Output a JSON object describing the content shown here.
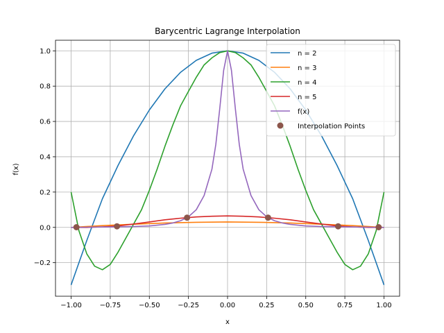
{
  "chart_data": {
    "type": "line",
    "title": "Barycentric Lagrange Interpolation",
    "xlabel": "x",
    "ylabel": "f(x)",
    "xlim": [
      -1.1,
      1.1
    ],
    "ylim": [
      -0.39,
      1.06
    ],
    "xticks": [
      -1.0,
      -0.75,
      -0.5,
      -0.25,
      0.0,
      0.25,
      0.5,
      0.75,
      1.0
    ],
    "xtick_labels": [
      "−1.00",
      "−0.75",
      "−0.50",
      "−0.25",
      "0.00",
      "0.25",
      "0.50",
      "0.75",
      "1.00"
    ],
    "yticks": [
      -0.2,
      0.0,
      0.2,
      0.4,
      0.6,
      0.8,
      1.0
    ],
    "ytick_labels": [
      "−0.2",
      "0.0",
      "0.2",
      "0.4",
      "0.6",
      "0.8",
      "1.0"
    ],
    "grid": true,
    "legend_position": "top-right",
    "series": [
      {
        "name": "n = 2",
        "color": "#1f77b4",
        "x": [
          -1.0,
          -0.9,
          -0.8,
          -0.7,
          -0.6,
          -0.5,
          -0.4,
          -0.3,
          -0.2,
          -0.1,
          0.0,
          0.1,
          0.2,
          0.3,
          0.4,
          0.5,
          0.6,
          0.7,
          0.8,
          0.9,
          1.0
        ],
        "y": [
          -0.326,
          -0.074,
          0.162,
          0.351,
          0.52,
          0.665,
          0.785,
          0.879,
          0.946,
          0.987,
          1.0,
          0.987,
          0.946,
          0.879,
          0.785,
          0.665,
          0.52,
          0.351,
          0.162,
          -0.074,
          -0.326
        ]
      },
      {
        "name": "n = 3",
        "color": "#ff7f0e",
        "x": [
          -1.0,
          -0.8,
          -0.6,
          -0.4,
          -0.2,
          0.0,
          0.2,
          0.4,
          0.6,
          0.8,
          1.0
        ],
        "y": [
          0.0,
          0.01,
          0.018,
          0.025,
          0.029,
          0.031,
          0.029,
          0.025,
          0.018,
          0.01,
          0.0
        ]
      },
      {
        "name": "n = 4",
        "color": "#2ca02c",
        "x": [
          -1.0,
          -0.95,
          -0.9,
          -0.85,
          -0.8,
          -0.75,
          -0.7,
          -0.65,
          -0.6,
          -0.55,
          -0.5,
          -0.45,
          -0.4,
          -0.35,
          -0.3,
          -0.25,
          -0.2,
          -0.15,
          -0.1,
          -0.05,
          0.0,
          0.05,
          0.1,
          0.15,
          0.2,
          0.25,
          0.3,
          0.35,
          0.4,
          0.45,
          0.5,
          0.55,
          0.6,
          0.65,
          0.7,
          0.75,
          0.8,
          0.85,
          0.9,
          0.95,
          1.0
        ],
        "y": [
          0.2,
          -0.02,
          -0.15,
          -0.22,
          -0.24,
          -0.21,
          -0.14,
          -0.06,
          0.02,
          0.1,
          0.21,
          0.33,
          0.46,
          0.58,
          0.69,
          0.77,
          0.85,
          0.92,
          0.96,
          0.99,
          1.0,
          0.99,
          0.96,
          0.92,
          0.85,
          0.77,
          0.69,
          0.58,
          0.46,
          0.33,
          0.21,
          0.1,
          0.02,
          -0.06,
          -0.14,
          -0.21,
          -0.24,
          -0.22,
          -0.15,
          -0.02,
          0.2
        ]
      },
      {
        "name": "n = 5",
        "color": "#d62728",
        "x": [
          -1.0,
          -0.9,
          -0.8,
          -0.7,
          -0.6,
          -0.5,
          -0.4,
          -0.3,
          -0.2,
          -0.1,
          0.0,
          0.1,
          0.2,
          0.3,
          0.4,
          0.5,
          0.6,
          0.7,
          0.8,
          0.9,
          1.0
        ],
        "y": [
          0.0,
          0.0,
          0.003,
          0.008,
          0.019,
          0.031,
          0.043,
          0.052,
          0.059,
          0.063,
          0.065,
          0.063,
          0.059,
          0.052,
          0.043,
          0.031,
          0.019,
          0.008,
          0.003,
          0.0,
          0.0
        ]
      },
      {
        "name": "f(x)",
        "color": "#9467bd",
        "x": [
          -1.0,
          -0.9,
          -0.8,
          -0.7,
          -0.6,
          -0.5,
          -0.4,
          -0.35,
          -0.3,
          -0.25,
          -0.2,
          -0.15,
          -0.1,
          -0.075,
          -0.05,
          -0.025,
          0.0,
          0.025,
          0.05,
          0.075,
          0.1,
          0.15,
          0.2,
          0.25,
          0.3,
          0.35,
          0.4,
          0.5,
          0.6,
          0.7,
          0.8,
          0.9,
          1.0
        ],
        "y": [
          0.0,
          0.001,
          0.002,
          0.003,
          0.005,
          0.008,
          0.017,
          0.025,
          0.038,
          0.06,
          0.1,
          0.18,
          0.33,
          0.47,
          0.67,
          0.89,
          1.0,
          0.89,
          0.67,
          0.47,
          0.33,
          0.18,
          0.1,
          0.06,
          0.038,
          0.025,
          0.017,
          0.008,
          0.005,
          0.003,
          0.002,
          0.001,
          0.0
        ]
      },
      {
        "name": "Interpolation Points",
        "color": "#8c564b",
        "marker": "circle",
        "x": [
          -0.966,
          -0.707,
          -0.259,
          0.259,
          0.707,
          0.966
        ],
        "y": [
          0.001,
          0.006,
          0.055,
          0.055,
          0.006,
          0.001
        ]
      }
    ]
  }
}
